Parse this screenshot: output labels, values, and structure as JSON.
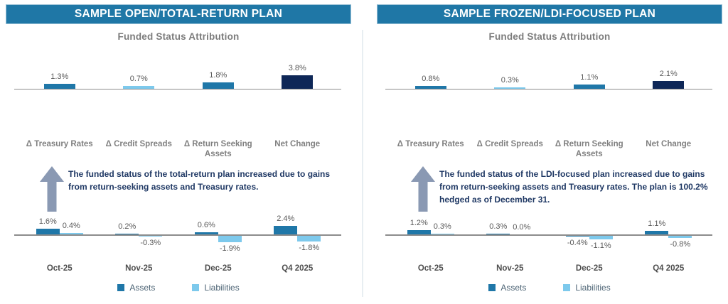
{
  "colors": {
    "banner_bg": "#1F77A6",
    "banner_border": "#9EC3D8",
    "banner_text": "#FFFFFF",
    "medium_blue": "#1F77A8",
    "light_blue": "#7DC9EC",
    "navy": "#0E2757",
    "axis_gray": "#8C8C8C",
    "subtitle_gray": "#7C7C7C",
    "label_gray": "#595959",
    "category_gray": "#808080",
    "month_gray": "#4D4D4D",
    "legend_text": "#4D6475",
    "annotation_navy": "#1F3864",
    "arrow_slate": "#8A99B3",
    "divider": "#E8EEF2"
  },
  "panels": [
    {
      "banner": "SAMPLE OPEN/TOTAL-RETURN PLAN",
      "annotation": "The funded status of the total-return plan increased due to gains from return-seeking assets and Treasury rates."
    },
    {
      "banner": "SAMPLE FROZEN/LDI-FOCUSED PLAN",
      "annotation": "The funded status of the LDI-focused plan increased due to gains from return-seeking assets and Treasury rates. The plan is 100.2% hedged as of December 31."
    }
  ],
  "chart_data": [
    {
      "panel": "SAMPLE OPEN/TOTAL-RETURN PLAN",
      "type": "bar",
      "title": "Funded Status Attribution",
      "categories": [
        "Δ Treasury Rates",
        "Δ Credit Spreads",
        "Δ Return Seeking Assets",
        "Net Change"
      ],
      "values": [
        1.3,
        0.7,
        1.8,
        3.8
      ],
      "value_labels": [
        "1.3%",
        "0.7%",
        "1.8%",
        "3.8%"
      ],
      "bar_colors": [
        "#1F77A8",
        "#7DC9EC",
        "#1F77A8",
        "#0E2757"
      ],
      "unit": "%",
      "ylim": [
        0,
        4.5
      ],
      "grid": false,
      "legend_position": "none"
    },
    {
      "panel": "SAMPLE OPEN/TOTAL-RETURN PLAN",
      "type": "bar",
      "grouped": true,
      "categories": [
        "Oct-25",
        "Nov-25",
        "Dec-25",
        "Q4 2025"
      ],
      "series": [
        {
          "name": "Assets",
          "color": "#1F77A8",
          "values": [
            1.6,
            0.2,
            0.6,
            2.4
          ]
        },
        {
          "name": "Liabilities",
          "color": "#7DC9EC",
          "values": [
            0.4,
            -0.3,
            -1.9,
            -1.8
          ]
        }
      ],
      "unit": "%",
      "ylim": [
        -2.5,
        3.0
      ],
      "grid": false,
      "legend_position": "bottom"
    },
    {
      "panel": "SAMPLE FROZEN/LDI-FOCUSED PLAN",
      "type": "bar",
      "title": "Funded Status Attribution",
      "categories": [
        "Δ Treasury Rates",
        "Δ Credit Spreads",
        "Δ Return Seeking Assets",
        "Net Change"
      ],
      "values": [
        0.8,
        0.3,
        1.1,
        2.1
      ],
      "value_labels": [
        "0.8%",
        "0.3%",
        "1.1%",
        "2.1%"
      ],
      "bar_colors": [
        "#1F77A8",
        "#7DC9EC",
        "#1F77A8",
        "#0E2757"
      ],
      "unit": "%",
      "ylim": [
        0,
        4.5
      ],
      "grid": false,
      "legend_position": "none"
    },
    {
      "panel": "SAMPLE FROZEN/LDI-FOCUSED PLAN",
      "type": "bar",
      "grouped": true,
      "categories": [
        "Oct-25",
        "Nov-25",
        "Dec-25",
        "Q4 2025"
      ],
      "series": [
        {
          "name": "Assets",
          "color": "#1F77A8",
          "values": [
            1.2,
            0.3,
            -0.4,
            1.1
          ]
        },
        {
          "name": "Liabilities",
          "color": "#7DC9EC",
          "values": [
            0.3,
            0.0,
            -1.1,
            -0.8
          ]
        }
      ],
      "unit": "%",
      "ylim": [
        -2.5,
        3.0
      ],
      "grid": false,
      "legend_position": "bottom"
    }
  ]
}
